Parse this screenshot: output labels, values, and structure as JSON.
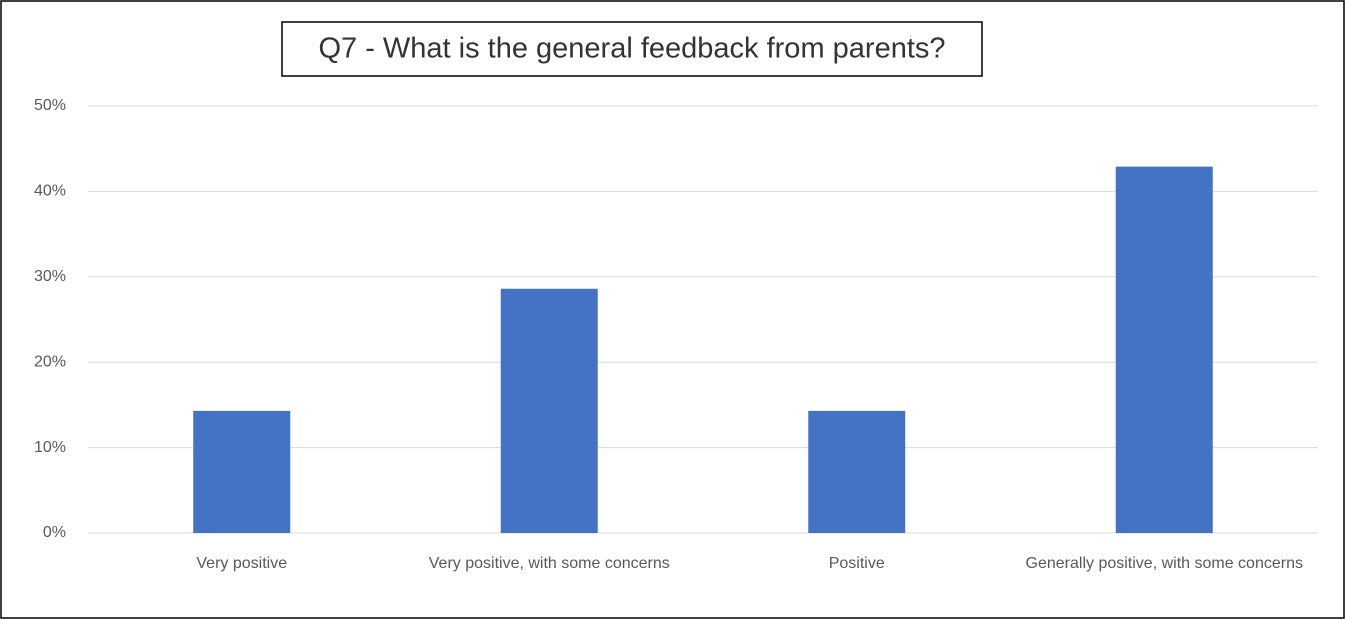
{
  "chart_data": {
    "type": "bar",
    "title": "Q7 - What is the general feedback from parents?",
    "categories": [
      "Very positive",
      "Very positive, with some concerns",
      "Positive",
      "Generally positive, with some concerns"
    ],
    "values": [
      14.3,
      28.6,
      14.3,
      42.9
    ],
    "color": "#4472c4",
    "ylim": [
      0,
      50
    ],
    "yticks": [
      {
        "value": 0,
        "label": "0%"
      },
      {
        "value": 10,
        "label": "10%"
      },
      {
        "value": 20,
        "label": "20%"
      },
      {
        "value": 30,
        "label": "30%"
      },
      {
        "value": 40,
        "label": "40%"
      },
      {
        "value": 50,
        "label": "50%"
      }
    ],
    "grid": true
  }
}
